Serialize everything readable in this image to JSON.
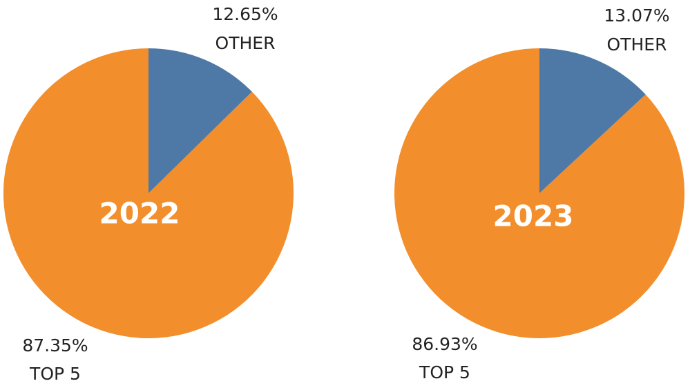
{
  "chart_data": [
    {
      "type": "pie",
      "title": "2022",
      "categories": [
        "OTHER",
        "TOP 5"
      ],
      "values": [
        12.65,
        87.35
      ],
      "value_labels": [
        "12.65%",
        "87.35%"
      ],
      "colors": [
        "#4e79a7",
        "#f28e2b"
      ]
    },
    {
      "type": "pie",
      "title": "2023",
      "categories": [
        "OTHER",
        "TOP 5"
      ],
      "values": [
        13.07,
        86.93
      ],
      "value_labels": [
        "13.07%",
        "86.93%"
      ],
      "colors": [
        "#4e79a7",
        "#f28e2b"
      ]
    }
  ]
}
